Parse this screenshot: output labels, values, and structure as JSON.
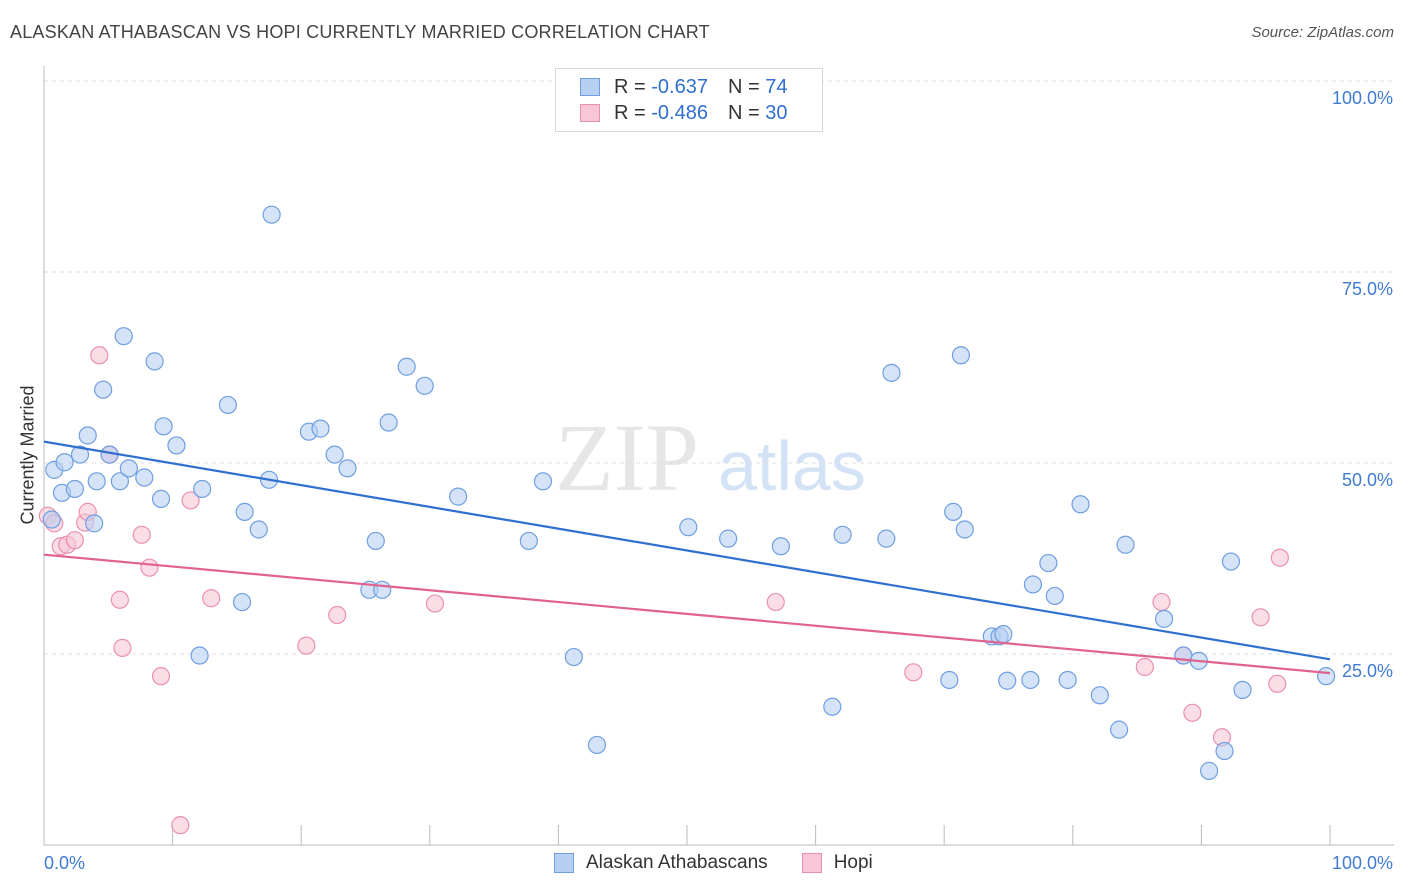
{
  "title": "ALASKAN ATHABASCAN VS HOPI CURRENTLY MARRIED CORRELATION CHART",
  "source": "Source: ZipAtlas.com",
  "watermark": {
    "zip": "ZIP",
    "atlas": "atlas"
  },
  "legend": {
    "rows": [
      {
        "r_label": "R =",
        "r_value": "-0.637",
        "n_label": "N =",
        "n_value": "74"
      },
      {
        "r_label": "R =",
        "r_value": "-0.486",
        "n_label": "N =",
        "n_value": "30"
      }
    ]
  },
  "colors": {
    "blue_fill": "#b7d0f2",
    "blue_stroke": "#6f9fe0",
    "blue_line": "#2f6fcf",
    "pink_fill": "#f8c6d6",
    "pink_stroke": "#e991b0",
    "pink_line": "#e0628f",
    "axis_text": "#3f7bd1",
    "grid": "#dddddd"
  },
  "chart_data": {
    "type": "scatter",
    "title": "ALASKAN ATHABASCAN VS HOPI CURRENTLY MARRIED CORRELATION CHART",
    "xlabel": "",
    "ylabel": "Currently Married",
    "xlim": [
      0,
      100
    ],
    "ylim": [
      0,
      100
    ],
    "x_tick_labels": [
      "0.0%",
      "100.0%"
    ],
    "y_ticks": [
      25,
      50,
      75,
      100
    ],
    "y_tick_labels": [
      "25.0%",
      "50.0%",
      "75.0%",
      "100.0%"
    ],
    "grid": true,
    "legend_position": "top-center",
    "series": [
      {
        "name": "Alaskan Athabascans",
        "color": "#6f9fe0",
        "r": -0.637,
        "n": 74,
        "trend": {
          "x": [
            0,
            100
          ],
          "y": [
            52.8,
            24.3
          ]
        },
        "points": [
          [
            0.6,
            42.6
          ],
          [
            0.8,
            49.1
          ],
          [
            1.4,
            46.1
          ],
          [
            1.6,
            50.1
          ],
          [
            2.4,
            46.6
          ],
          [
            2.8,
            51.1
          ],
          [
            3.4,
            53.6
          ],
          [
            3.9,
            42.1
          ],
          [
            4.1,
            47.6
          ],
          [
            4.6,
            59.6
          ],
          [
            5.1,
            51.1
          ],
          [
            5.9,
            47.6
          ],
          [
            6.2,
            66.6
          ],
          [
            6.6,
            49.3
          ],
          [
            7.8,
            48.1
          ],
          [
            8.6,
            63.3
          ],
          [
            9.1,
            45.3
          ],
          [
            9.3,
            54.8
          ],
          [
            10.3,
            52.3
          ],
          [
            12.1,
            24.8
          ],
          [
            12.3,
            46.6
          ],
          [
            14.3,
            57.6
          ],
          [
            15.4,
            31.8
          ],
          [
            15.6,
            43.6
          ],
          [
            16.7,
            41.3
          ],
          [
            17.5,
            47.8
          ],
          [
            17.7,
            82.5
          ],
          [
            20.6,
            54.1
          ],
          [
            21.5,
            54.5
          ],
          [
            22.6,
            51.1
          ],
          [
            23.6,
            49.3
          ],
          [
            25.3,
            33.4
          ],
          [
            25.8,
            39.8
          ],
          [
            26.3,
            33.4
          ],
          [
            26.8,
            55.3
          ],
          [
            28.2,
            62.6
          ],
          [
            29.6,
            60.1
          ],
          [
            32.2,
            45.6
          ],
          [
            37.7,
            39.8
          ],
          [
            38.8,
            47.6
          ],
          [
            41.2,
            24.6
          ],
          [
            43.0,
            13.1
          ],
          [
            50.1,
            41.6
          ],
          [
            53.2,
            40.1
          ],
          [
            57.3,
            39.1
          ],
          [
            61.3,
            18.1
          ],
          [
            62.1,
            40.6
          ],
          [
            65.5,
            40.1
          ],
          [
            65.9,
            61.8
          ],
          [
            70.4,
            21.6
          ],
          [
            70.7,
            43.6
          ],
          [
            71.3,
            64.1
          ],
          [
            71.6,
            41.3
          ],
          [
            73.7,
            27.3
          ],
          [
            74.3,
            27.3
          ],
          [
            74.6,
            27.6
          ],
          [
            74.9,
            21.5
          ],
          [
            76.7,
            21.6
          ],
          [
            76.9,
            34.1
          ],
          [
            78.1,
            36.9
          ],
          [
            78.6,
            32.6
          ],
          [
            79.6,
            21.6
          ],
          [
            80.6,
            44.6
          ],
          [
            82.1,
            19.6
          ],
          [
            83.6,
            15.1
          ],
          [
            84.1,
            39.3
          ],
          [
            87.1,
            29.6
          ],
          [
            88.6,
            24.8
          ],
          [
            89.8,
            24.1
          ],
          [
            90.6,
            9.7
          ],
          [
            91.8,
            12.3
          ],
          [
            92.3,
            37.1
          ],
          [
            93.2,
            20.3
          ],
          [
            99.7,
            22.1
          ]
        ]
      },
      {
        "name": "Hopi",
        "color": "#e991b0",
        "r": -0.486,
        "n": 30,
        "trend": {
          "x": [
            0,
            100
          ],
          "y": [
            38.0,
            22.5
          ]
        },
        "points": [
          [
            0.3,
            43.1
          ],
          [
            0.8,
            42.1
          ],
          [
            1.3,
            39.1
          ],
          [
            1.8,
            39.3
          ],
          [
            2.4,
            39.9
          ],
          [
            3.2,
            42.2
          ],
          [
            3.4,
            43.6
          ],
          [
            4.3,
            64.1
          ],
          [
            5.1,
            51.1
          ],
          [
            5.9,
            32.1
          ],
          [
            6.1,
            25.8
          ],
          [
            7.6,
            40.6
          ],
          [
            8.2,
            36.3
          ],
          [
            9.1,
            22.1
          ],
          [
            10.6,
            2.6
          ],
          [
            11.4,
            45.1
          ],
          [
            13.0,
            32.3
          ],
          [
            20.4,
            26.1
          ],
          [
            22.8,
            30.1
          ],
          [
            30.4,
            31.6
          ],
          [
            56.9,
            31.8
          ],
          [
            67.6,
            22.6
          ],
          [
            85.6,
            23.3
          ],
          [
            86.9,
            31.8
          ],
          [
            88.6,
            24.8
          ],
          [
            89.3,
            17.3
          ],
          [
            91.6,
            14.1
          ],
          [
            94.6,
            29.8
          ],
          [
            95.9,
            21.1
          ],
          [
            96.1,
            37.6
          ]
        ]
      }
    ]
  }
}
